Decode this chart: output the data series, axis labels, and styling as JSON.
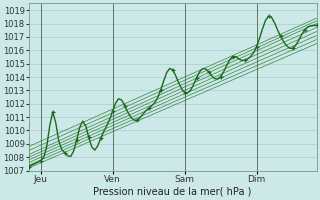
{
  "title": "",
  "xlabel": "Pression niveau de la mer( hPa )",
  "ylim": [
    1007,
    1019.5
  ],
  "xlim": [
    0,
    96
  ],
  "yticks": [
    1007,
    1008,
    1009,
    1010,
    1011,
    1012,
    1013,
    1014,
    1015,
    1016,
    1017,
    1018,
    1019
  ],
  "xtick_positions": [
    4,
    28,
    52,
    76
  ],
  "xtick_labels": [
    "Jeu",
    "Ven",
    "Sam",
    "Dim"
  ],
  "bg_color": "#cce8e8",
  "grid_color": "#aacece",
  "line_color": "#1a6b1a",
  "vline_positions": [
    4,
    28,
    52,
    76
  ],
  "ensemble_starts": [
    1007.2,
    1007.4,
    1007.6,
    1007.8,
    1008.0,
    1008.2,
    1008.5,
    1008.8
  ],
  "ensemble_ends": [
    1016.5,
    1016.8,
    1017.1,
    1017.4,
    1017.7,
    1018.0,
    1018.2,
    1018.4
  ],
  "num_points": 97
}
